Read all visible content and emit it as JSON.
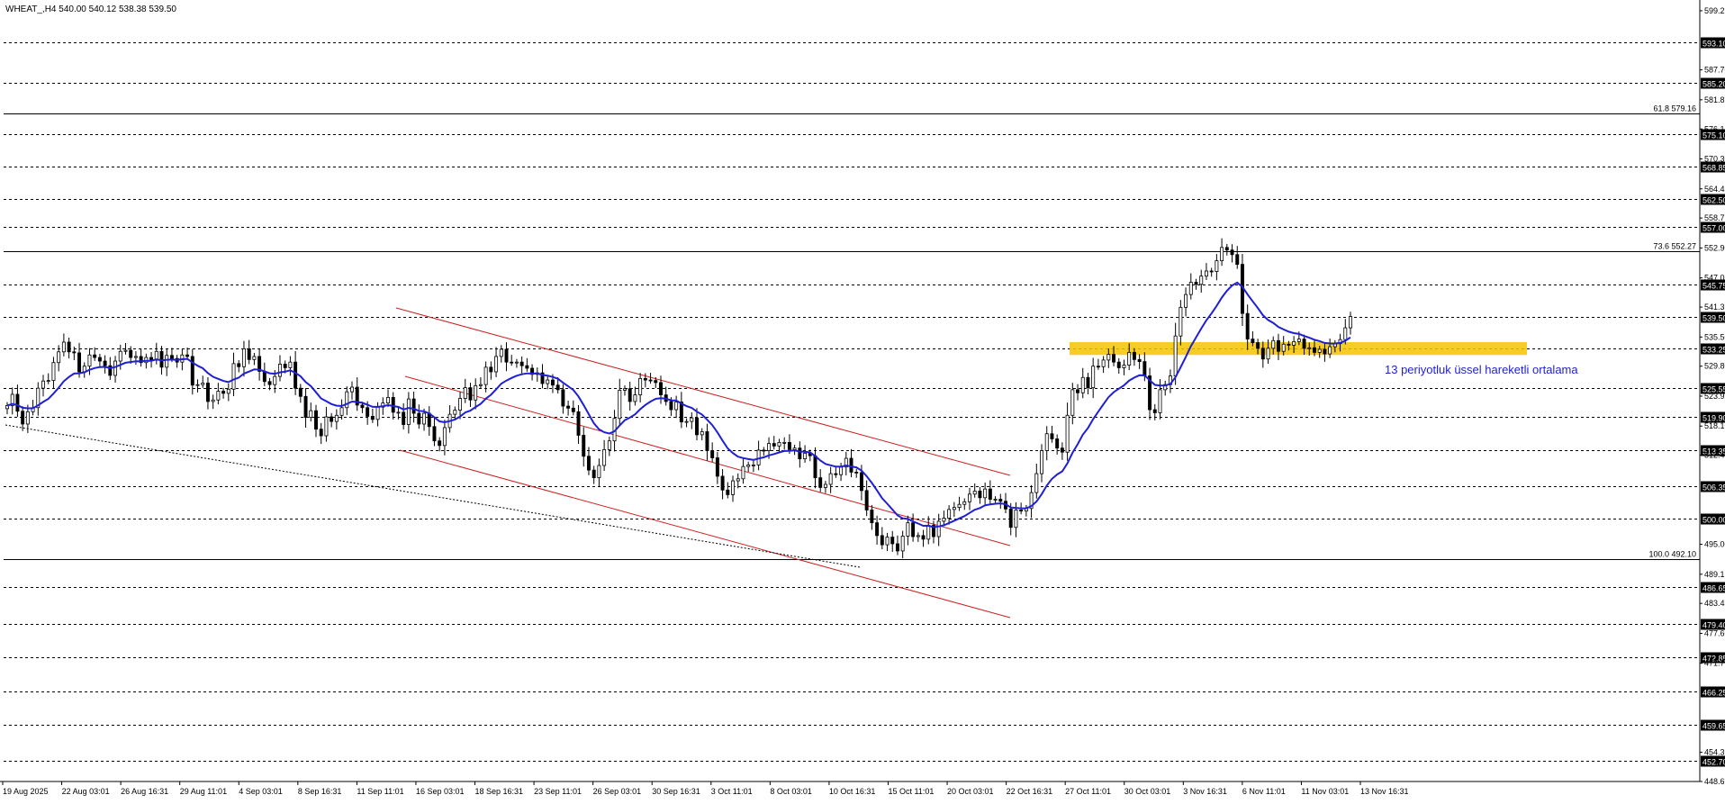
{
  "header": {
    "symbol_info": "WHEAT_,H4  540.00 540.12 538.38 539.50"
  },
  "annotation": {
    "ema_label": "13 periyotluk üssel hareketli ortalama"
  },
  "chart_data": {
    "type": "candlestick",
    "symbol": "WHEAT_",
    "timeframe": "H4",
    "ohlc_last": {
      "open": 540.0,
      "high": 540.12,
      "low": 538.38,
      "close": 539.5
    },
    "ylim": [
      448.65,
      601.0
    ],
    "price_scale_labels": [
      "599.25",
      "587.70",
      "581.85",
      "576.15",
      "570.30",
      "564.45",
      "558.75",
      "552.90",
      "547.05",
      "541.35",
      "535.50",
      "529.80",
      "523.95",
      "518.10",
      "512.40",
      "495.00",
      "489.15",
      "483.45",
      "477.60",
      "471.75",
      "454.35",
      "448.65"
    ],
    "horizontal_levels": [
      593.1,
      585.2,
      575.1,
      568.85,
      562.5,
      557.0,
      545.75,
      539.5,
      533.25,
      525.55,
      519.9,
      513.35,
      506.35,
      500.0,
      486.65,
      479.4,
      472.85,
      466.25,
      459.65,
      452.7
    ],
    "fibonacci_levels": [
      {
        "label": "61.8 579.16",
        "value": 579.16
      },
      {
        "label": "73.6 552.27",
        "value": 552.27
      },
      {
        "label": "100.0 492.10",
        "value": 492.1
      }
    ],
    "x_tick_labels": [
      "19 Aug 2025",
      "22 Aug 03:01",
      "26 Aug 16:31",
      "29 Aug 11:01",
      "4 Sep 03:01",
      "8 Sep 16:31",
      "11 Sep 11:01",
      "16 Sep 03:01",
      "18 Sep 16:31",
      "23 Sep 11:01",
      "26 Sep 03:01",
      "30 Sep 16:31",
      "3 Oct 11:01",
      "8 Oct 03:01",
      "10 Oct 16:31",
      "15 Oct 11:01",
      "20 Oct 03:01",
      "22 Oct 16:31",
      "27 Oct 11:01",
      "30 Oct 03:01",
      "3 Nov 16:31",
      "6 Nov 11:01",
      "11 Nov 03:01",
      "13 Nov 16:31"
    ],
    "ema_period": 13,
    "support_zone": {
      "low": 532.0,
      "high": 534.5
    },
    "close_series": [
      522.1,
      524.3,
      521.0,
      518.5,
      520.9,
      521.7,
      525.5,
      526.9,
      527.0,
      530.5,
      532.6,
      534.5,
      532.6,
      532.4,
      528.7,
      529.8,
      532.0,
      531.5,
      530.8,
      529.9,
      528.0,
      530.8,
      532.7,
      532.9,
      531.5,
      531.7,
      530.5,
      531.5,
      531.0,
      532.7,
      529.6,
      531.9,
      531.3,
      530.6,
      532.0,
      531.7,
      526.1,
      526.2,
      526.5,
      522.9,
      523.2,
      524.9,
      524.5,
      525.3,
      530.3,
      529.7,
      533.2,
      531.1,
      531.7,
      528.8,
      526.8,
      526.2,
      527.8,
      530.2,
      529.5,
      530.6,
      525.5,
      523.9,
      519.8,
      521.1,
      517.5,
      516.2,
      519.9,
      519.0,
      520.2,
      521.7,
      524.8,
      525.7,
      522.2,
      521.7,
      520.0,
      519.4,
      521.8,
      522.6,
      523.7,
      520.8,
      520.8,
      518.4,
      523.4,
      520.6,
      518.5,
      520.6,
      518.0,
      515.2,
      514.3,
      517.8,
      520.4,
      521.2,
      523.5,
      525.6,
      523.2,
      526.0,
      526.2,
      529.6,
      528.7,
      531.7,
      533.1,
      530.6,
      530.5,
      530.6,
      529.9,
      529.4,
      528.2,
      528.5,
      526.4,
      527.1,
      526.1,
      525.2,
      522.0,
      521.6,
      520.9,
      516.3,
      512.2,
      509.5,
      508.0,
      510.4,
      513.5,
      515.2,
      519.6,
      525.1,
      525.4,
      522.9,
      524.2,
      527.4,
      527.1,
      527.0,
      526.6,
      524.2,
      522.9,
      521.3,
      522.8,
      518.9,
      519.0,
      519.7,
      516.4,
      517.0,
      513.3,
      511.9,
      508.3,
      505.6,
      504.7,
      507.4,
      507.8,
      510.2,
      510.5,
      510.5,
      513.4,
      513.3,
      514.7,
      514.2,
      514.9,
      514.9,
      513.5,
      513.8,
      511.7,
      512.8,
      512.3,
      508.0,
      506.1,
      506.7,
      508.8,
      508.6,
      510.1,
      511.8,
      509.1,
      509.0,
      505.5,
      501.7,
      499.2,
      496.7,
      494.9,
      496.4,
      495.1,
      493.7,
      496.6,
      499.2,
      496.5,
      496.7,
      496.0,
      498.7,
      496.5,
      499.5,
      500.1,
      501.8,
      502.2,
      502.8,
      503.3,
      504.8,
      505.4,
      504.1,
      505.8,
      503.8,
      503.8,
      503.4,
      501.9,
      498.3,
      501.7,
      501.5,
      502.0,
      505.1,
      508.8,
      513.3,
      516.6,
      515.6,
      513.8,
      513.0,
      520.2,
      525.2,
      524.6,
      527.6,
      525.6,
      529.8,
      529.7,
      531.0,
      532.1,
      530.6,
      529.5,
      530.0,
      532.5,
      531.1,
      530.7,
      527.9,
      521.3,
      520.7,
      525.2,
      526.2,
      527.9,
      535.7,
      541.3,
      543.8,
      546.2,
      545.8,
      547.4,
      548.4,
      548.3,
      550.4,
      553.0,
      552.5,
      551.6,
      549.7,
      540.1,
      535.1,
      534.4,
      533.3,
      531.2,
      533.3,
      534.8,
      532.7,
      534.1,
      533.9,
      534.6,
      535.1,
      533.3,
      533.4,
      532.5,
      533.1,
      532.2,
      533.6,
      534.2,
      535.0,
      537.3,
      539.5
    ]
  },
  "colors": {
    "background": "#ffffff",
    "candle": "#000000",
    "ema": "#1f1fd6",
    "channel": "#d02020",
    "support_zone": "#f5c400",
    "level_line": "#000000",
    "annotation_text": "#1f1fd6"
  }
}
